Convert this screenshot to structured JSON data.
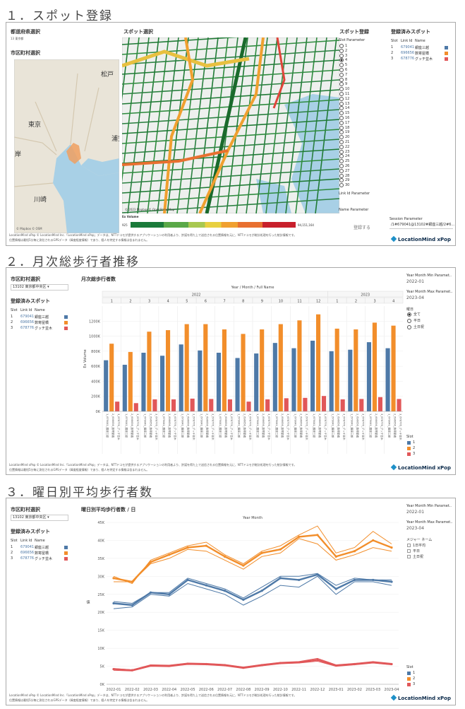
{
  "sections": {
    "s1": "１．スポット登録",
    "s2": "２．月次総歩行者推移",
    "s3": "３．曜日別平均歩行者数"
  },
  "p1": {
    "pref_title": "都道府県選択",
    "pref_value": "13 東京都",
    "city_title": "市区町村選択",
    "spot_title": "スポット選択",
    "spot_reg_title": "スポット登録",
    "slot_param": "Slot Parameter",
    "slot_numbers": [
      "1",
      "2",
      "3",
      "4",
      "5",
      "6",
      "7",
      "8",
      "9",
      "10",
      "11",
      "12",
      "13",
      "14",
      "15",
      "16",
      "17",
      "18",
      "19",
      "20",
      "21",
      "22",
      "23",
      "24",
      "25",
      "26",
      "27",
      "28",
      "29",
      "30"
    ],
    "link_param": "Link Id Parameter",
    "name_param": "Name Parameter",
    "register_button": "登録する",
    "registered_title": "登録済みスポット",
    "cols": [
      "Slot",
      "Link Id",
      "Name"
    ],
    "rows": [
      {
        "slot": "1",
        "link": "679041",
        "name": "銀座三越",
        "color": "#4e79a7"
      },
      {
        "slot": "2",
        "link": "696656",
        "name": "数寄屋橋",
        "color": "#f28e2b"
      },
      {
        "slot": "3",
        "link": "678776",
        "name": "グッチ並木",
        "color": "#e15759"
      }
    ],
    "session_param": "Session Parameter",
    "session_value": "/1#679041@13102#銀座三越/2#6...",
    "exvol_title": "Ex Volume",
    "exvol_min": "925",
    "exvol_max": "94,151,164",
    "map_labels": {
      "matsudo": "松戸",
      "tokyo": "東京",
      "urayasu": "浦安",
      "kawasaki": "川崎",
      "kishi": "岸"
    },
    "attribution": "© 2023 Mapbox © OpenStreetMap",
    "mini_attrib": "© Mapbox © OSM",
    "footer1": "LocationMind xPop © LocationMind Inc.「LocationMind xPop」データは、NTTドコモが提供するアプリケーションの利用者より、許諾を得た上で送信される位置情報を元に、NTTドコモが総計処理を行った統計情報です。",
    "footer2": "位置情報は最短5分毎に測位されるGPSデータ（緯度経度情報）であり、個人を特定する情報は含まれません。",
    "logo": "LocationMind xPop"
  },
  "p2": {
    "city_title": "市区町村選択",
    "city_value": "13102 東京都中央区",
    "registered_title": "登録済みスポット",
    "cols": [
      "Slot",
      "Link Id",
      "Name"
    ],
    "rows": [
      {
        "slot": "1",
        "link": "679041",
        "name": "銀座三越",
        "color": "#4e79a7"
      },
      {
        "slot": "2",
        "link": "696656",
        "name": "数寄屋橋",
        "color": "#f28e2b"
      },
      {
        "slot": "3",
        "link": "678776",
        "name": "グッチ並木",
        "color": "#e15759"
      }
    ],
    "ym_min_title": "Year Month Min Paramet..",
    "ym_min_value": "2022-01",
    "ym_max_title": "Year Month Max Paramet..",
    "ym_max_value": "2023-04",
    "weekday_title": "曜日",
    "weekday_options": [
      "全て",
      "平日",
      "土日祝"
    ],
    "slot_legend_title": "Slot",
    "slot_legend": [
      "1",
      "2",
      "3"
    ],
    "footer1": "LocationMind xPop © LocationMind Inc.「LocationMind xPop」データは、NTTドコモが提供するアプリケーションの利用者より、許諾を得た上で送信される位置情報を元に、NTTドコモが総計処理を行った統計情報です。",
    "footer2": "位置情報は最短5分毎に測位されるGPSデータ（緯度経度情報）であり、個人を特定する情報は含まれません。",
    "logo": "LocationMind xPop"
  },
  "p3": {
    "city_title": "市区町村選択",
    "city_value": "13102 東京都中央区",
    "registered_title": "登録済みスポット",
    "cols": [
      "Slot",
      "Link Id",
      "Name"
    ],
    "rows": [
      {
        "slot": "1",
        "link": "679041",
        "name": "銀座三越",
        "color": "#4e79a7"
      },
      {
        "slot": "2",
        "link": "696656",
        "name": "数寄屋橋",
        "color": "#f28e2b"
      },
      {
        "slot": "3",
        "link": "678776",
        "name": "グッチ並木",
        "color": "#e15759"
      }
    ],
    "ym_min_title": "Year Month Min Paramet..",
    "ym_min_value": "2022-01",
    "ym_max_title": "Year Month Max Paramet..",
    "ym_max_value": "2023-04",
    "measure_title": "メジャー ネーム",
    "measure_items": [
      "1日平均",
      "平日",
      "土日祝"
    ],
    "slot_legend_title": "Slot",
    "slot_legend": [
      "1",
      "2",
      "3"
    ],
    "footer1": "LocationMind xPop © LocationMind Inc.「LocationMind xPop」データは、NTTドコモが提供するアプリケーションの利用者より、許諾を得た上で送信される位置情報を元に、NTTドコモが総計処理を行った統計情報です。",
    "footer2": "位置情報は最短5分毎に測位されるGPSデータ（緯度経度情報）であり、個人を特定する情報は含まれません。",
    "logo": "LocationMind xPop"
  },
  "chart_data": [
    {
      "type": "bar",
      "title": "月次総歩行者数",
      "header": "Year / Month / Full Name",
      "years": [
        {
          "label": "2022",
          "months": 12
        },
        {
          "label": "2023",
          "months": 4
        }
      ],
      "months": [
        "1",
        "2",
        "3",
        "4",
        "5",
        "6",
        "7",
        "8",
        "9",
        "10",
        "11",
        "12",
        "1",
        "2",
        "3",
        "4"
      ],
      "bar_labels": [
        "1_679041_銀座三越",
        "2_696656_数寄屋橋",
        "3_678776_グッチ並木"
      ],
      "ylabel": "Ex Volume",
      "ylim": [
        0,
        1400000
      ],
      "yticks": [
        0,
        200000,
        400000,
        600000,
        800000,
        1000000,
        1200000
      ],
      "ytick_labels": [
        "0K",
        "200K",
        "400K",
        "600K",
        "800K",
        "1000K",
        "1200K"
      ],
      "series": [
        {
          "name": "1",
          "color": "#4e79a7",
          "values": [
            680000,
            620000,
            780000,
            740000,
            890000,
            810000,
            780000,
            710000,
            770000,
            910000,
            840000,
            940000,
            800000,
            820000,
            920000,
            840000
          ]
        },
        {
          "name": "2",
          "color": "#f28e2b",
          "values": [
            900000,
            790000,
            1060000,
            1080000,
            1160000,
            1160000,
            1090000,
            1030000,
            1090000,
            1160000,
            1210000,
            1290000,
            1100000,
            1090000,
            1180000,
            1140000
          ]
        },
        {
          "name": "3",
          "color": "#e15759",
          "values": [
            130000,
            110000,
            160000,
            160000,
            170000,
            165000,
            160000,
            130000,
            160000,
            175000,
            180000,
            205000,
            160000,
            165000,
            190000,
            165000
          ]
        }
      ]
    },
    {
      "type": "line",
      "title": "曜日別平均歩行者数 / 日",
      "header": "Year Month",
      "ylabel": "値",
      "x": [
        "2022-01",
        "2022-02",
        "2022-03",
        "2022-04",
        "2022-05",
        "2022-06",
        "2022-07",
        "2022-08",
        "2022-09",
        "2022-10",
        "2022-11",
        "2022-12",
        "2023-01",
        "2023-02",
        "2023-03",
        "2023-04"
      ],
      "ylim": [
        0,
        45000
      ],
      "yticks": [
        0,
        5000,
        10000,
        15000,
        20000,
        25000,
        30000,
        35000,
        40000,
        45000
      ],
      "ytick_labels": [
        "0K",
        "5K",
        "10K",
        "15K",
        "20K",
        "25K",
        "30K",
        "35K",
        "40K",
        "45K"
      ],
      "series": [
        {
          "name": "1 1日平均",
          "color": "#4e79a7",
          "width": 2.4,
          "values": [
            22500,
            22000,
            25500,
            25000,
            29000,
            27500,
            26000,
            23500,
            26000,
            29500,
            29000,
            30500,
            26500,
            29000,
            29000,
            28500
          ]
        },
        {
          "name": "1 平日",
          "color": "#4e79a7",
          "width": 1,
          "values": [
            23000,
            22500,
            25500,
            25500,
            29500,
            28000,
            26500,
            24000,
            27000,
            30000,
            30000,
            30800,
            27500,
            29500,
            29000,
            29000
          ]
        },
        {
          "name": "1 土日祝",
          "color": "#4e79a7",
          "width": 1,
          "values": [
            21000,
            21500,
            25000,
            24500,
            28000,
            26500,
            25000,
            22000,
            24500,
            27500,
            27000,
            30000,
            25000,
            28500,
            28500,
            27500
          ]
        },
        {
          "name": "2 1日平均",
          "color": "#f28e2b",
          "width": 2.4,
          "values": [
            29500,
            28500,
            34000,
            36000,
            38000,
            38500,
            35500,
            33000,
            36500,
            37500,
            41000,
            41500,
            35500,
            37000,
            40000,
            38000
          ]
        },
        {
          "name": "2 平日",
          "color": "#f28e2b",
          "width": 1,
          "values": [
            30000,
            28000,
            34500,
            36500,
            38500,
            39500,
            36000,
            33500,
            37000,
            38500,
            41500,
            44000,
            36500,
            38000,
            42500,
            39000
          ]
        },
        {
          "name": "2 土日祝",
          "color": "#f28e2b",
          "width": 1,
          "values": [
            28500,
            28500,
            33500,
            35000,
            37500,
            37000,
            34500,
            32000,
            35500,
            36500,
            40500,
            39000,
            34500,
            36000,
            38000,
            37000
          ]
        },
        {
          "name": "3 1日平均",
          "color": "#e15759",
          "width": 2.4,
          "values": [
            4200,
            3900,
            5200,
            5100,
            5700,
            5600,
            5300,
            4600,
            5300,
            5900,
            6100,
            6800,
            5200,
            5600,
            6100,
            5600
          ]
        },
        {
          "name": "3 平日",
          "color": "#e15759",
          "width": 1,
          "values": [
            4400,
            4000,
            5400,
            5300,
            5900,
            5800,
            5500,
            4800,
            5500,
            6100,
            6300,
            7200,
            5400,
            5800,
            6300,
            5800
          ]
        },
        {
          "name": "3 土日祝",
          "color": "#e15759",
          "width": 1,
          "values": [
            3900,
            3700,
            5000,
            4900,
            5500,
            5400,
            5100,
            4400,
            5100,
            5700,
            5900,
            6400,
            5000,
            5400,
            5900,
            5400
          ]
        }
      ]
    }
  ]
}
